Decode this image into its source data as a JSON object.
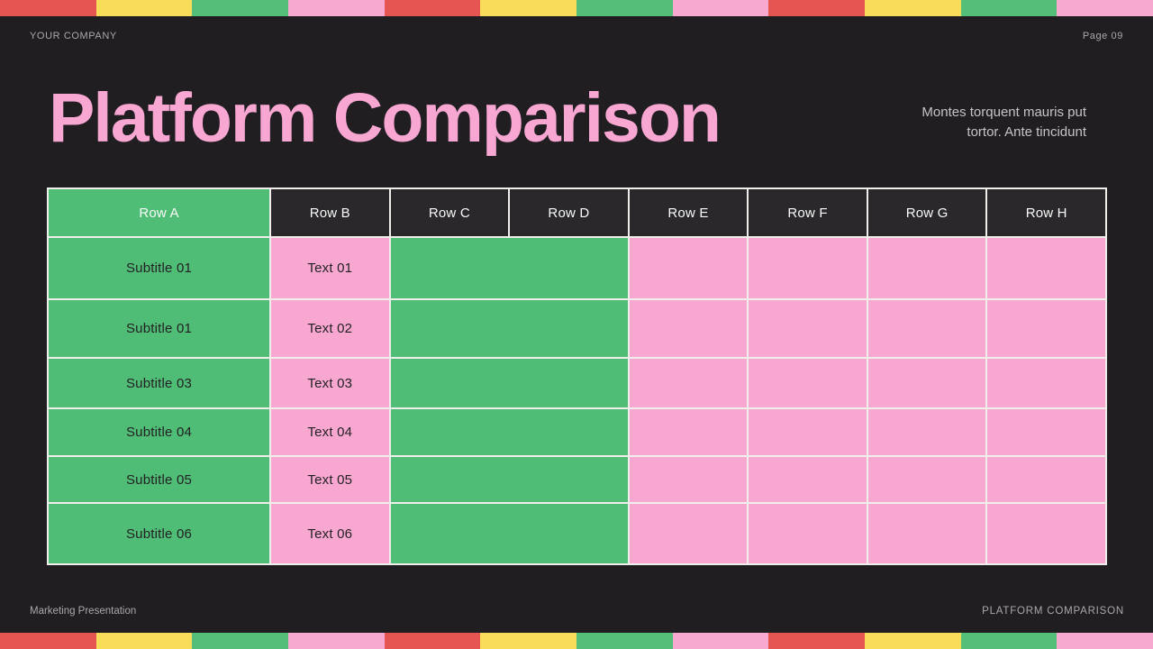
{
  "slide": {
    "company": "YOUR COMPANY",
    "page_number": "Page 09",
    "title": "Platform Comparison",
    "subtitle": [
      "Montes torquent mauris put",
      "tortor. Ante tincidunt"
    ],
    "footer_left": "Marketing Presentation",
    "footer_right": "PLATFORM COMPARISON"
  },
  "table": {
    "headers": [
      "Row A",
      "Row B",
      "Row C",
      "Row D",
      "Row E",
      "Row F",
      "Row G",
      "Row H"
    ],
    "rows": [
      {
        "subtitle": "Subtitle 01",
        "text": "Text 01"
      },
      {
        "subtitle": "Subtitle 01",
        "text": "Text 02"
      },
      {
        "subtitle": "Subtitle 03",
        "text": "Text 03"
      },
      {
        "subtitle": "Subtitle 04",
        "text": "Text 04"
      },
      {
        "subtitle": "Subtitle 05",
        "text": "Text 05"
      },
      {
        "subtitle": "Subtitle 06",
        "text": "Text 06"
      }
    ]
  },
  "stripes": [
    "red",
    "yellow",
    "green",
    "pink",
    "red",
    "yellow",
    "green",
    "pink",
    "red",
    "yellow",
    "green",
    "pink"
  ],
  "colors": {
    "page-bg": "#201E21",
    "stripe-red": "#E75552",
    "stripe-yellow": "#FADC5B",
    "stripe-green": "#53BF78",
    "stripe-pink": "#F7A9CF",
    "title-pink": "#F8A6D2",
    "cell-green": "#50BD76",
    "cell-pink": "#F8A8D0",
    "header-cell-dark": "#2A282B",
    "border": "#EFEEEB",
    "cell-text-dark": "#232124",
    "header-text": "#FAFAFA",
    "muted-text": "#ABA8AA",
    "subtitle-text": "#C7C4C6"
  }
}
